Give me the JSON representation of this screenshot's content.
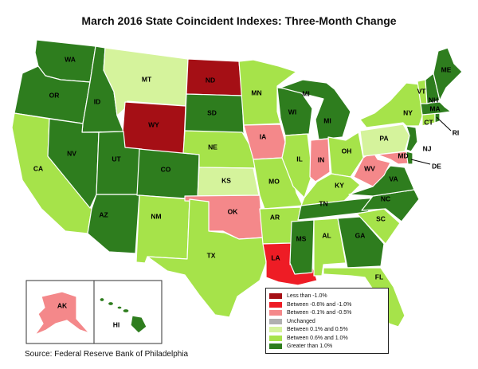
{
  "title": "March 2016 State Coincident Indexes: Three-Month Change",
  "source": "Source: Federal Reserve Bank of Philadelphia",
  "colors": {
    "c1": "#a50f15",
    "c2": "#ee1c25",
    "c3": "#f4888a",
    "c4": "#b0b0b0",
    "c5": "#d5f39c",
    "c6": "#a6e34a",
    "c7": "#2e7d1e"
  },
  "legend": [
    {
      "label": "Less than -1.0%",
      "color_key": "c1"
    },
    {
      "label": "Between -0.6% and -1.0%",
      "color_key": "c2"
    },
    {
      "label": "Between -0.1% and -0.5%",
      "color_key": "c3"
    },
    {
      "label": "Unchanged",
      "color_key": "c4"
    },
    {
      "label": "Between 0.1% and 0.5%",
      "color_key": "c5"
    },
    {
      "label": "Between 0.6% and 1.0%",
      "color_key": "c6"
    },
    {
      "label": "Greater than 1.0%",
      "color_key": "c7"
    }
  ],
  "states": {
    "WA": "c7",
    "OR": "c7",
    "CA": "c6",
    "ID": "c7",
    "NV": "c7",
    "MT": "c5",
    "WY": "c1",
    "UT": "c7",
    "AZ": "c7",
    "CO": "c7",
    "NM": "c6",
    "ND": "c1",
    "SD": "c7",
    "NE": "c6",
    "KS": "c5",
    "OK": "c3",
    "TX": "c6",
    "MN": "c6",
    "IA": "c3",
    "MO": "c6",
    "AR": "c6",
    "LA": "c2",
    "WI": "c7",
    "IL": "c6",
    "MI": "c7",
    "IN": "c3",
    "OH": "c6",
    "KY": "c6",
    "TN": "c7",
    "MS": "c7",
    "AL": "c6",
    "GA": "c7",
    "FL": "c6",
    "SC": "c6",
    "NC": "c7",
    "VA": "c7",
    "WV": "c3",
    "PA": "c5",
    "NY": "c6",
    "VT": "c6",
    "NH": "c7",
    "ME": "c7",
    "MA": "c7",
    "RI": "c7",
    "CT": "c6",
    "NJ": "c7",
    "DE": "c7",
    "MD": "c3",
    "AK": "c3",
    "HI": "c7"
  }
}
